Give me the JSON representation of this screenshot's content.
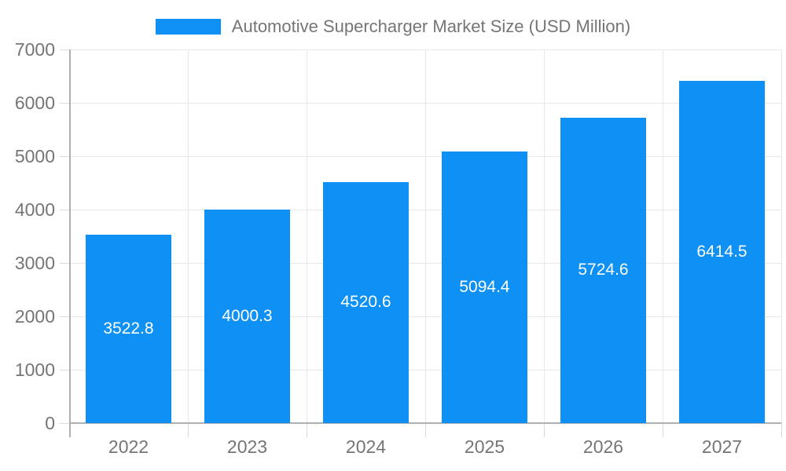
{
  "chart_data": {
    "type": "bar",
    "title": "Automotive Supercharger Market Size (USD Million)",
    "legend": {
      "position": "top-center",
      "entries": [
        "Automotive Supercharger Market Size (USD Million)"
      ]
    },
    "categories": [
      "2022",
      "2023",
      "2024",
      "2025",
      "2026",
      "2027"
    ],
    "values": [
      3522.8,
      4000.3,
      4520.6,
      5094.4,
      5724.6,
      6414.5
    ],
    "value_labels_shown": true,
    "xlabel": "",
    "ylabel": "",
    "ylim": [
      0,
      7000
    ],
    "yticks": [
      0,
      1000,
      2000,
      3000,
      4000,
      5000,
      6000,
      7000
    ],
    "grid": "horizontal-and-vertical",
    "colors": {
      "bar": "#0e90f5",
      "value_label": "#ffffff",
      "axis_label": "#757575",
      "title_text": "#757575",
      "axis_line": "#b0b0b0",
      "gridline": "#e8e8e8",
      "tick": "#d9d9d9",
      "background": "#ffffff"
    }
  }
}
